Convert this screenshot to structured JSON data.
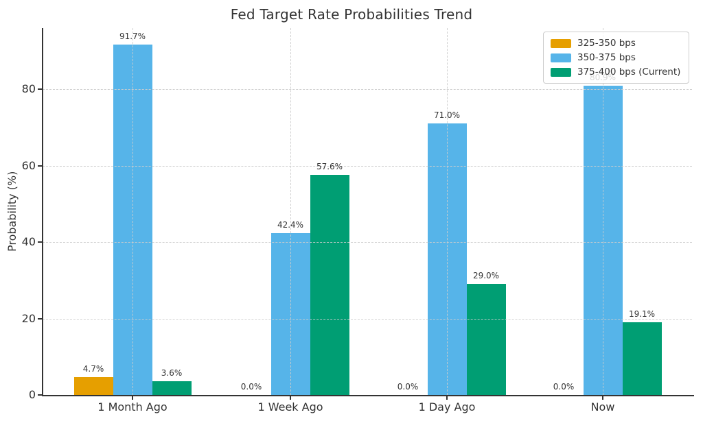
{
  "chart_data": {
    "type": "bar",
    "title": "Fed Target Rate Probabilities Trend",
    "xlabel": "",
    "ylabel": "Probability (%)",
    "categories": [
      "1 Month Ago",
      "1 Week Ago",
      "1 Day Ago",
      "Now"
    ],
    "series": [
      {
        "name": "325-350 bps",
        "color": "#E69F00",
        "values": [
          4.7,
          0.0,
          0.0,
          0.0
        ],
        "labels": [
          "4.7%",
          "0.0%",
          "0.0%",
          "0.0%"
        ]
      },
      {
        "name": "350-375 bps",
        "color": "#56B4E9",
        "values": [
          91.7,
          42.4,
          71.0,
          80.9
        ],
        "labels": [
          "91.7%",
          "42.4%",
          "71.0%",
          "80.9%"
        ]
      },
      {
        "name": "375-400 bps (Current)",
        "color": "#009E73",
        "values": [
          3.6,
          57.6,
          29.0,
          19.1
        ],
        "labels": [
          "3.6%",
          "57.6%",
          "29.0%",
          "19.1%"
        ]
      }
    ],
    "yticks": [
      0,
      20,
      40,
      60,
      80
    ],
    "ytick_labels": [
      "0",
      "20",
      "40",
      "60",
      "80"
    ],
    "ylim": [
      0,
      96
    ],
    "grid": "both-dashed",
    "legend_position": "upper right",
    "text_color": "#333333",
    "axis_color": "#333333",
    "gridline_color": "#cdcdcd",
    "background_color": "#ffffff"
  }
}
